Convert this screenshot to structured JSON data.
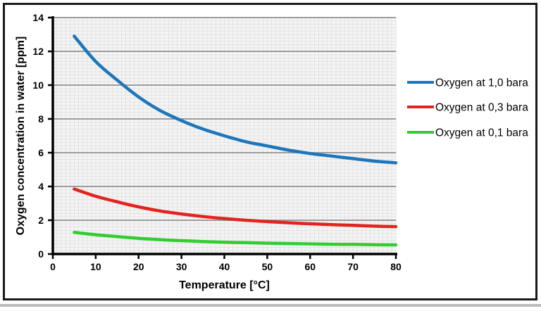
{
  "chart_data": {
    "type": "line",
    "title": "",
    "xlabel": "Temperature [°C]",
    "ylabel": "Oxygen concentration in water [ppm]",
    "xlim": [
      0,
      80
    ],
    "ylim": [
      0,
      14
    ],
    "x_ticks": [
      0,
      10,
      20,
      30,
      40,
      50,
      60,
      70,
      80
    ],
    "y_ticks": [
      0,
      2,
      4,
      6,
      8,
      10,
      12,
      14
    ],
    "x_minor_step": 1,
    "y_minor_step": 0.2,
    "grid": "major horizontal gray lines every 2 ppm; fine light minor mesh",
    "legend_position": "right",
    "x": [
      5,
      10,
      15,
      20,
      25,
      30,
      35,
      40,
      45,
      50,
      55,
      60,
      65,
      70,
      75,
      80
    ],
    "series": [
      {
        "name": "Oxygen at 1,0 bara",
        "color": "#1d76bb",
        "values": [
          12.9,
          11.4,
          10.3,
          9.3,
          8.5,
          7.9,
          7.4,
          7.0,
          6.65,
          6.4,
          6.15,
          5.95,
          5.8,
          5.65,
          5.5,
          5.4
        ]
      },
      {
        "name": "Oxygen at 0,3 bara",
        "color": "#e42320",
        "values": [
          3.85,
          3.42,
          3.09,
          2.79,
          2.55,
          2.37,
          2.22,
          2.1,
          2.0,
          1.92,
          1.85,
          1.79,
          1.74,
          1.7,
          1.65,
          1.62
        ]
      },
      {
        "name": "Oxygen at 0,1 bara",
        "color": "#33cc33",
        "values": [
          1.28,
          1.14,
          1.03,
          0.93,
          0.85,
          0.79,
          0.74,
          0.7,
          0.67,
          0.64,
          0.62,
          0.6,
          0.58,
          0.57,
          0.55,
          0.54
        ]
      }
    ],
    "colors": {
      "plot_background": "#f5f5f5",
      "minor_grid": "#e2e2e2",
      "major_grid": "#9c9c9c",
      "axis": "#000000",
      "frame_border": "#1a1a1a",
      "window_strip": "#bdbdbd"
    }
  }
}
